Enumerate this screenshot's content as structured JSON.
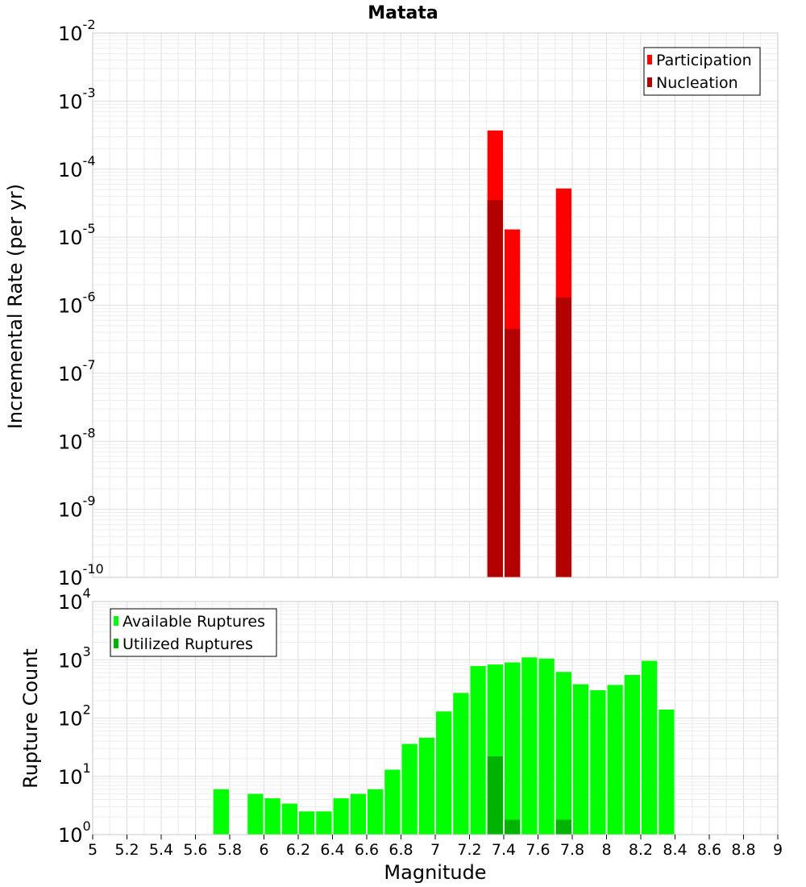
{
  "chart_data": [
    {
      "type": "bar",
      "title": "Matata",
      "xlabel": "",
      "ylabel": "Incremental Rate (per yr)",
      "yscale": "log",
      "ylim_exponents": [
        -10,
        -2
      ],
      "y_tick_labels": [
        {
          "base": "10",
          "exp": "-10"
        },
        {
          "base": "10",
          "exp": "-9"
        },
        {
          "base": "10",
          "exp": "-8"
        },
        {
          "base": "10",
          "exp": "-7"
        },
        {
          "base": "10",
          "exp": "-6"
        },
        {
          "base": "10",
          "exp": "-5"
        },
        {
          "base": "10",
          "exp": "-4"
        },
        {
          "base": "10",
          "exp": "-3"
        },
        {
          "base": "10",
          "exp": "-2"
        }
      ],
      "xlim": [
        5,
        9
      ],
      "grid": true,
      "legend_position": "top-right",
      "series": [
        {
          "name": "Participation",
          "color": "#ff0000",
          "x": [
            7.35,
            7.45,
            7.75
          ],
          "values": [
            0.00037,
            1.3e-05,
            5.2e-05
          ]
        },
        {
          "name": "Nucleation",
          "color": "#b30000",
          "x": [
            7.35,
            7.45,
            7.75
          ],
          "values": [
            3.5e-05,
            4.5e-07,
            1.3e-06
          ]
        }
      ]
    },
    {
      "type": "bar",
      "title": "",
      "xlabel": "Magnitude",
      "ylabel": "Rupture Count",
      "yscale": "log",
      "ylim_exponents": [
        0,
        4
      ],
      "y_tick_labels": [
        {
          "base": "10",
          "exp": "0"
        },
        {
          "base": "10",
          "exp": "1"
        },
        {
          "base": "10",
          "exp": "2"
        },
        {
          "base": "10",
          "exp": "3"
        },
        {
          "base": "10",
          "exp": "4"
        }
      ],
      "xlim": [
        5,
        9
      ],
      "x_tick_labels": [
        "5",
        "5.2",
        "5.4",
        "5.6",
        "5.8",
        "6",
        "6.2",
        "6.4",
        "6.6",
        "6.8",
        "7",
        "7.2",
        "7.4",
        "7.6",
        "7.8",
        "8",
        "8.2",
        "8.4",
        "8.6",
        "8.8",
        "9"
      ],
      "grid": true,
      "legend_position": "top-left",
      "series": [
        {
          "name": "Available Ruptures",
          "color": "#00ff00",
          "x": [
            5.75,
            5.95,
            6.05,
            6.15,
            6.25,
            6.35,
            6.45,
            6.55,
            6.65,
            6.75,
            6.85,
            6.95,
            7.05,
            7.15,
            7.25,
            7.35,
            7.45,
            7.55,
            7.65,
            7.75,
            7.85,
            7.95,
            8.05,
            8.15,
            8.25,
            8.35
          ],
          "values": [
            6,
            5,
            4.2,
            3.4,
            2.5,
            2.5,
            4.2,
            5,
            6,
            13,
            36,
            46,
            130,
            270,
            780,
            830,
            900,
            1100,
            1050,
            620,
            380,
            300,
            370,
            550,
            960,
            140
          ]
        },
        {
          "name": "Utilized Ruptures",
          "color": "#00b300",
          "x": [
            7.35,
            7.45,
            7.75
          ],
          "values": [
            22,
            1.8,
            1.8
          ]
        }
      ]
    }
  ]
}
